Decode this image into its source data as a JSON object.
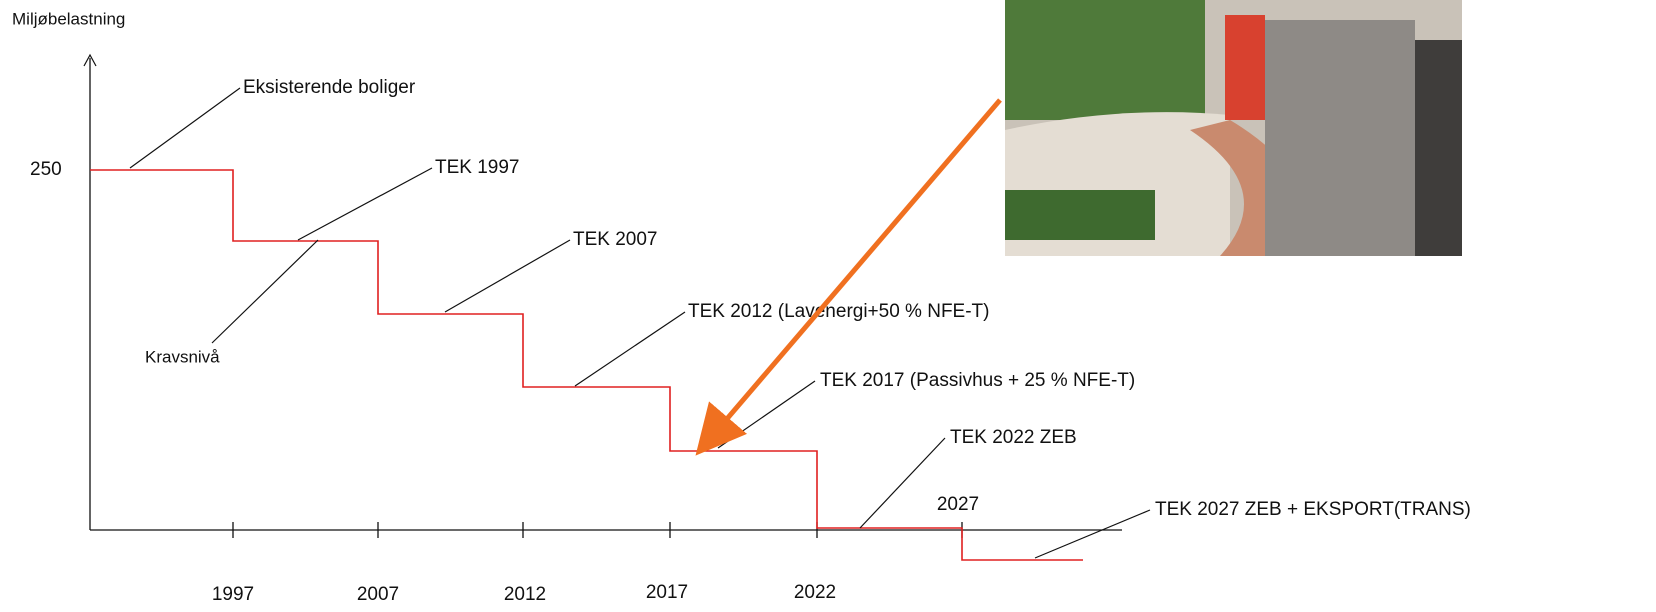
{
  "axis": {
    "y_label": "Miljøbelastning",
    "y_tick": "250",
    "x_ticks": [
      "1997",
      "2007",
      "2012",
      "2017",
      "2022"
    ],
    "extra_tick": "2027"
  },
  "labels": [
    "Eksisterende boliger",
    "TEK 1997",
    "Kravsnivå",
    "TEK 2007",
    "TEK 2012 (Lavenergi+50 % NFE-T)",
    "TEK 2017 (Passivhus + 25 % NFE-T)",
    "TEK 2022 ZEB",
    "TEK 2027 ZEB + EKSPORT(TRANS)"
  ]
}
